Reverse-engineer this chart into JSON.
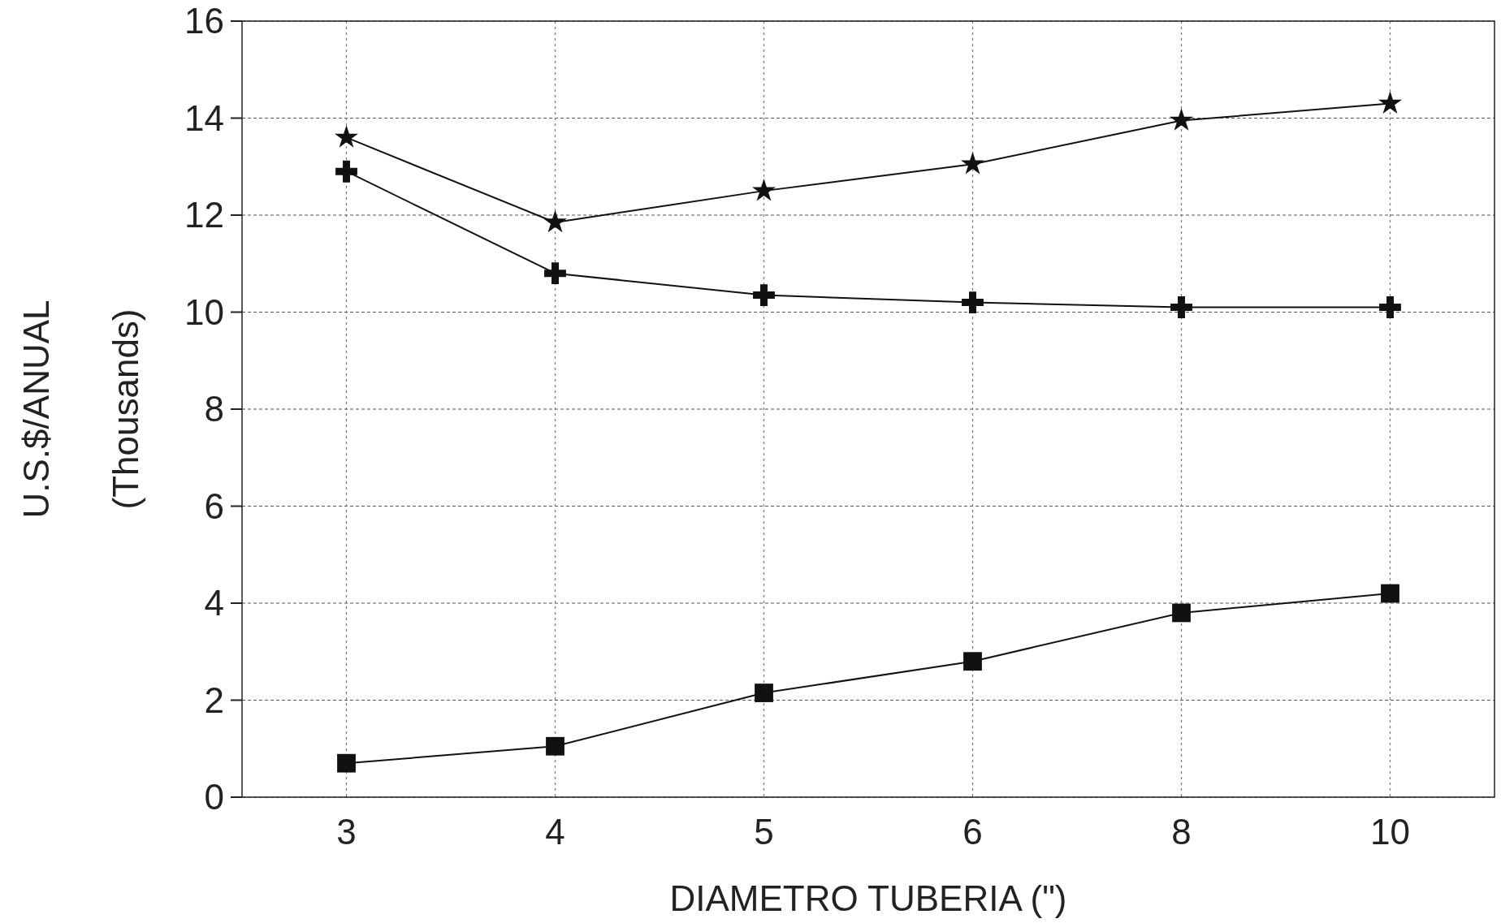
{
  "chart_data": {
    "type": "line",
    "xlabel": "DIAMETRO TUBERIA (\")",
    "ylabel": "U.S.$/ANUAL\n(Thousands)",
    "categories": [
      "3",
      "4",
      "5",
      "6",
      "8",
      "10"
    ],
    "series": [
      {
        "color": "#111111",
        "marker": "star",
        "values": [
          13.6,
          11.85,
          12.5,
          13.05,
          13.95,
          14.3
        ]
      },
      {
        "color": "#111111",
        "marker": "cross",
        "values": [
          12.9,
          10.8,
          10.35,
          10.2,
          10.1,
          10.1
        ]
      },
      {
        "color": "#111111",
        "marker": "square",
        "values": [
          0.7,
          1.05,
          2.15,
          2.8,
          3.8,
          4.2
        ]
      }
    ],
    "ylim": [
      0,
      16
    ],
    "yticks": [
      0,
      2,
      4,
      6,
      8,
      10,
      12,
      14,
      16
    ],
    "grid": true,
    "line_style": "solid"
  }
}
